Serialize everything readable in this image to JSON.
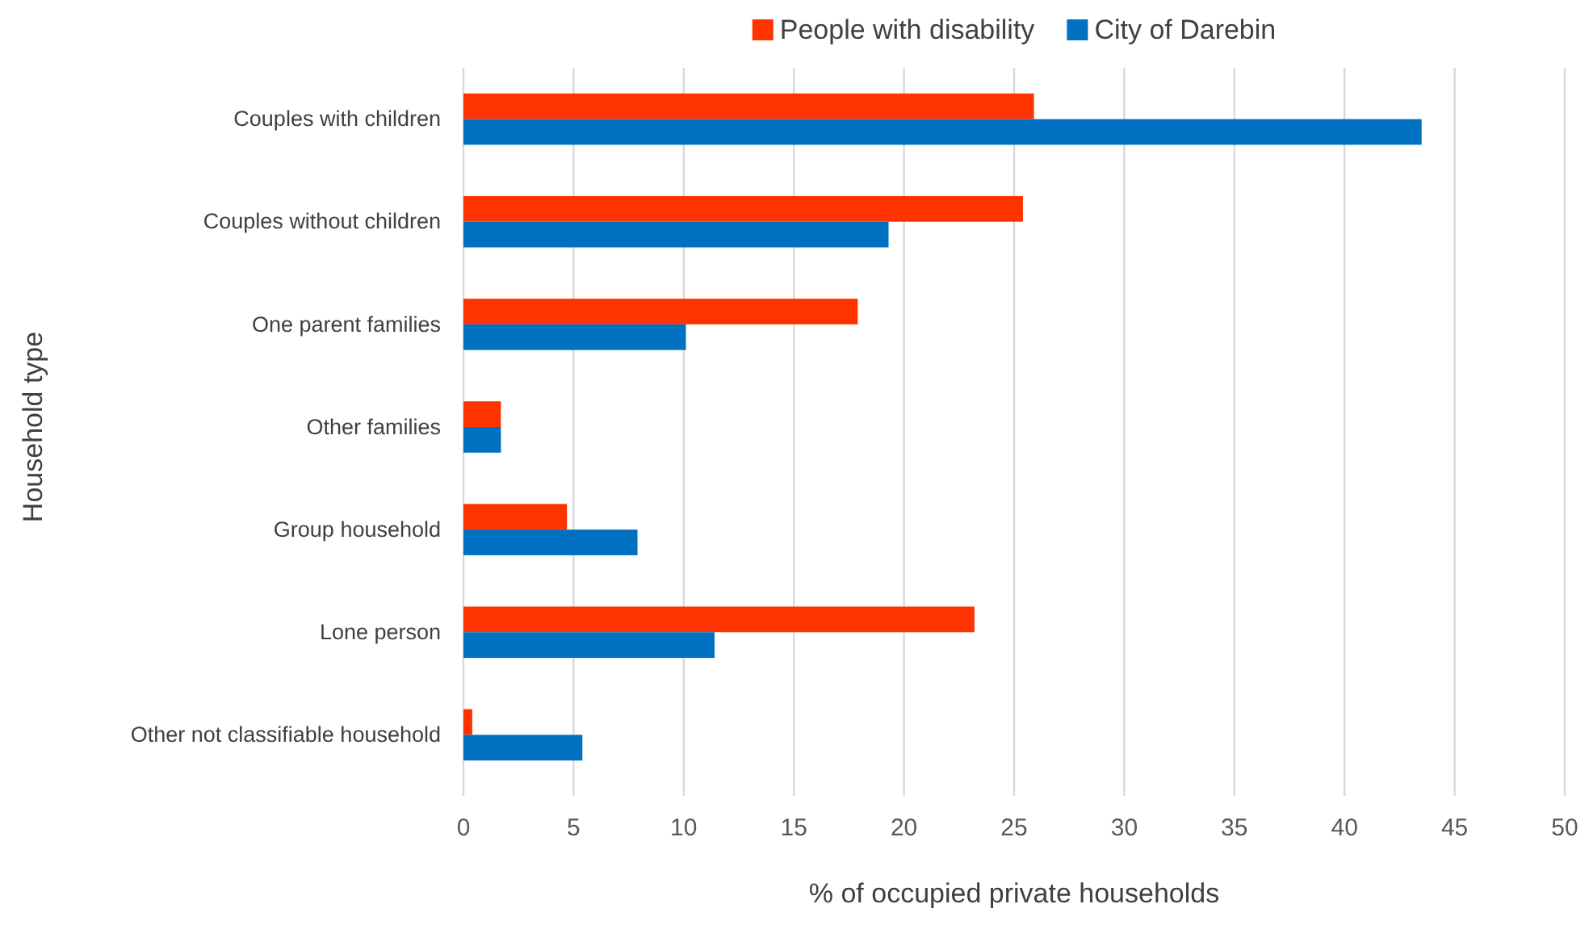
{
  "chart_data": {
    "type": "bar",
    "orientation": "horizontal",
    "xlabel": "% of occupied private households",
    "ylabel": "Household type",
    "categories": [
      "Couples with children",
      "Couples without children",
      "One parent families",
      "Other families",
      "Group household",
      "Lone person",
      "Other not classifiable household"
    ],
    "series": [
      {
        "name": "People with disability",
        "color": "#ff3300",
        "values": [
          25.9,
          25.4,
          17.9,
          1.7,
          4.7,
          23.2,
          0.4
        ]
      },
      {
        "name": "City of Darebin",
        "color": "#0070c0",
        "values": [
          43.5,
          19.3,
          10.1,
          1.7,
          7.9,
          11.4,
          5.4
        ]
      }
    ],
    "xlim": [
      0,
      50
    ],
    "xticks": [
      0,
      5,
      10,
      15,
      20,
      25,
      30,
      35,
      40,
      45,
      50
    ],
    "grid": "x",
    "legend": "top"
  }
}
